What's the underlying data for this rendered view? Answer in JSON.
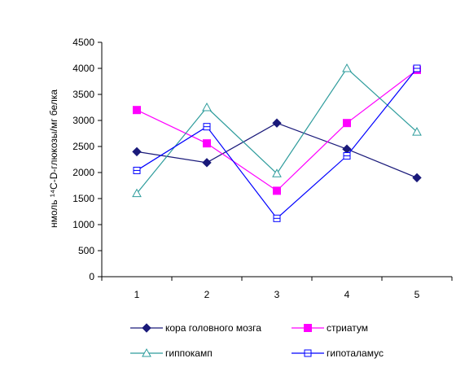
{
  "chart_data": {
    "type": "line",
    "title": "",
    "xlabel": "",
    "ylabel": "нмоль ¹⁴C-D-глюкозы/мг белка",
    "categories": [
      "1",
      "2",
      "3",
      "4",
      "5"
    ],
    "ylim": [
      0,
      4500
    ],
    "yticks": [
      "0",
      "500",
      "1000",
      "1500",
      "2000",
      "2500",
      "3000",
      "3500",
      "4000",
      "4500"
    ],
    "grid": false,
    "legend_position": "bottom",
    "series": [
      {
        "name": "кора головного мозга",
        "values": [
          2400,
          2190,
          2950,
          2450,
          1900
        ],
        "color": "#1a1a7a",
        "marker": "diamond"
      },
      {
        "name": "стриатум",
        "values": [
          3200,
          2560,
          1650,
          2950,
          3970
        ],
        "color": "#ff00ff",
        "marker": "square"
      },
      {
        "name": "гиппокамп",
        "values": [
          1600,
          3250,
          1980,
          4000,
          2780
        ],
        "color": "#2e9c9c",
        "marker": "triangle-open"
      },
      {
        "name": "гипоталамус",
        "values": [
          2040,
          2880,
          1120,
          2320,
          4000
        ],
        "color": "#0000ff",
        "marker": "square-open"
      }
    ]
  }
}
